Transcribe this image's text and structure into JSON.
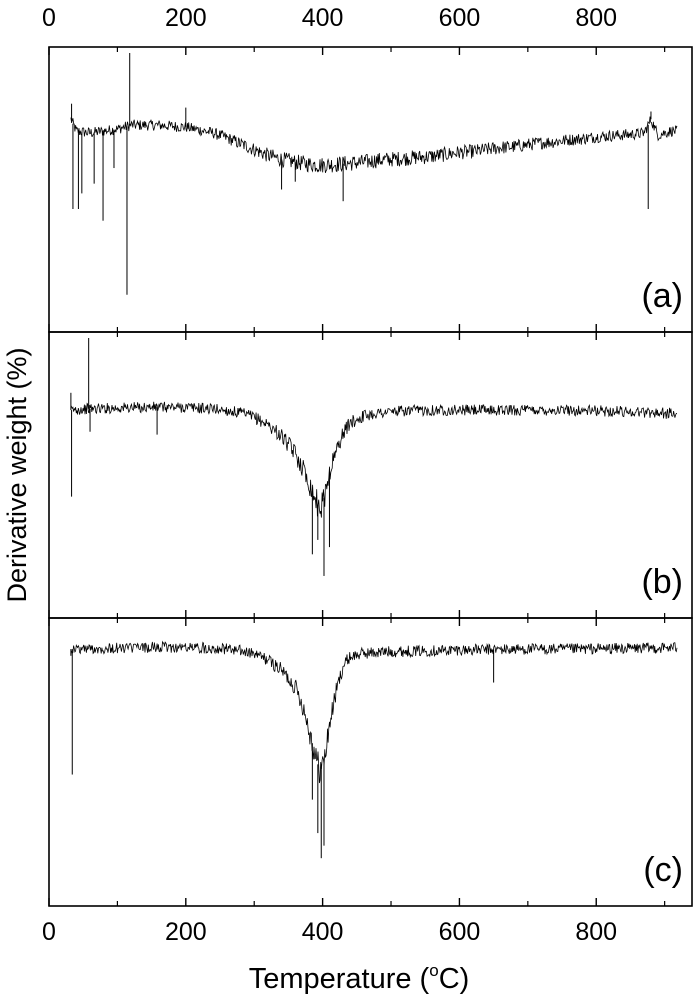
{
  "figure": {
    "ylabel": "Derivative weight (%)",
    "xlabel": "Temperature (",
    "xlabel_unit_sup": "o",
    "xlabel_unit_rest": "C)",
    "line_color": "#000000"
  },
  "chart_data": {
    "type": "line",
    "shared_x_axis": true,
    "xlim": [
      0,
      940
    ],
    "x_ticks": [
      0,
      200,
      400,
      600,
      800
    ],
    "x_tick_labels": [
      "0",
      "200",
      "400",
      "600",
      "800"
    ],
    "x_tick_labels_top": [
      "0",
      "200",
      "400",
      "600",
      "800"
    ],
    "y_ticks_shown": false,
    "panels": [
      {
        "label": "(a)",
        "ylim": [
          -10,
          4
        ],
        "series": [
          {
            "x": [
              32,
              40,
              60,
              80,
              100,
              110,
              120,
              140,
              160,
              180,
              200,
              220,
              240,
              260,
              280,
              300,
              320,
              340,
              360,
              380,
              400,
              420,
              440,
              460,
              480,
              500,
              520,
              540,
              560,
              580,
              600,
              620,
              640,
              660,
              680,
              700,
              720,
              740,
              760,
              780,
              800,
              820,
              840,
              860,
              870,
              880,
              890,
              900,
              910,
              918
            ],
            "y": [
              0.6,
              0.0,
              -0.1,
              0.0,
              0.1,
              0.2,
              0.3,
              0.3,
              0.3,
              0.25,
              0.2,
              0.05,
              -0.1,
              -0.35,
              -0.65,
              -0.95,
              -1.25,
              -1.45,
              -1.6,
              -1.7,
              -1.75,
              -1.7,
              -1.65,
              -1.6,
              -1.5,
              -1.45,
              -1.4,
              -1.35,
              -1.3,
              -1.2,
              -1.1,
              -1.05,
              -0.95,
              -0.85,
              -0.8,
              -0.7,
              -0.6,
              -0.55,
              -0.45,
              -0.4,
              -0.3,
              -0.25,
              -0.2,
              -0.15,
              -0.1,
              0.6,
              -0.2,
              -0.1,
              0.0,
              0.0
            ]
          }
        ],
        "spikes": [
          {
            "x": 33,
            "y": 1.4
          },
          {
            "x": 35,
            "y": -4.0
          },
          {
            "x": 43,
            "y": -4.0
          },
          {
            "x": 48,
            "y": -3.2
          },
          {
            "x": 66,
            "y": -2.7
          },
          {
            "x": 79,
            "y": -4.6
          },
          {
            "x": 95,
            "y": -1.9
          },
          {
            "x": 114,
            "y": -8.4
          },
          {
            "x": 118,
            "y": 4.0
          },
          {
            "x": 200,
            "y": 1.2
          },
          {
            "x": 340,
            "y": -3.0
          },
          {
            "x": 360,
            "y": -2.6
          },
          {
            "x": 430,
            "y": -3.6
          },
          {
            "x": 876,
            "y": -4.0
          },
          {
            "x": 880,
            "y": 1.0
          }
        ]
      },
      {
        "label": "(b)",
        "ylim": [
          -14,
          5
        ],
        "series": [
          {
            "x": [
              32,
              60,
              100,
              150,
              200,
              250,
              280,
              300,
              320,
              340,
              360,
              370,
              380,
              390,
              395,
              400,
              405,
              410,
              420,
              430,
              440,
              460,
              480,
              500,
              550,
              600,
              650,
              700,
              750,
              800,
              850,
              900,
              918
            ],
            "y": [
              0.0,
              0.1,
              0.15,
              0.2,
              0.2,
              0.05,
              -0.2,
              -0.5,
              -1.0,
              -1.8,
              -3.0,
              -3.9,
              -5.0,
              -6.2,
              -6.8,
              -6.5,
              -5.5,
              -4.3,
              -2.8,
              -1.6,
              -0.9,
              -0.4,
              -0.2,
              -0.1,
              0.0,
              0.0,
              0.0,
              0.0,
              0.0,
              -0.05,
              -0.1,
              -0.2,
              -0.3
            ]
          }
        ],
        "spikes": [
          {
            "x": 32,
            "y": 1.2
          },
          {
            "x": 33,
            "y": -6.0
          },
          {
            "x": 58,
            "y": 5.0
          },
          {
            "x": 60,
            "y": -1.5
          },
          {
            "x": 158,
            "y": -1.7
          },
          {
            "x": 385,
            "y": -10.0
          },
          {
            "x": 393,
            "y": -9.0
          },
          {
            "x": 402,
            "y": -11.5
          },
          {
            "x": 410,
            "y": -9.5
          }
        ]
      },
      {
        "label": "(c)",
        "ylim": [
          -30,
          3
        ],
        "series": [
          {
            "x": [
              32,
              60,
              100,
              150,
              200,
              250,
              280,
              300,
              320,
              340,
              360,
              370,
              380,
              390,
              395,
              400,
              405,
              410,
              420,
              430,
              440,
              460,
              500,
              550,
              600,
              650,
              700,
              750,
              800,
              850,
              900,
              918
            ],
            "y": [
              0.0,
              0.05,
              0.1,
              0.2,
              0.2,
              0.1,
              -0.2,
              -0.6,
              -1.3,
              -2.5,
              -4.5,
              -6.5,
              -9.5,
              -13.0,
              -14.3,
              -14.0,
              -12.0,
              -9.0,
              -5.0,
              -2.0,
              -0.9,
              -0.5,
              -0.3,
              -0.2,
              -0.1,
              -0.05,
              0.0,
              0.0,
              0.05,
              0.1,
              0.15,
              0.2
            ]
          }
        ],
        "spikes": [
          {
            "x": 32,
            "y": -0.8
          },
          {
            "x": 34,
            "y": -15.0
          },
          {
            "x": 385,
            "y": -18.0
          },
          {
            "x": 393,
            "y": -22.0
          },
          {
            "x": 398,
            "y": -25.0
          },
          {
            "x": 402,
            "y": -23.5
          },
          {
            "x": 650,
            "y": -4.0
          }
        ]
      }
    ]
  }
}
